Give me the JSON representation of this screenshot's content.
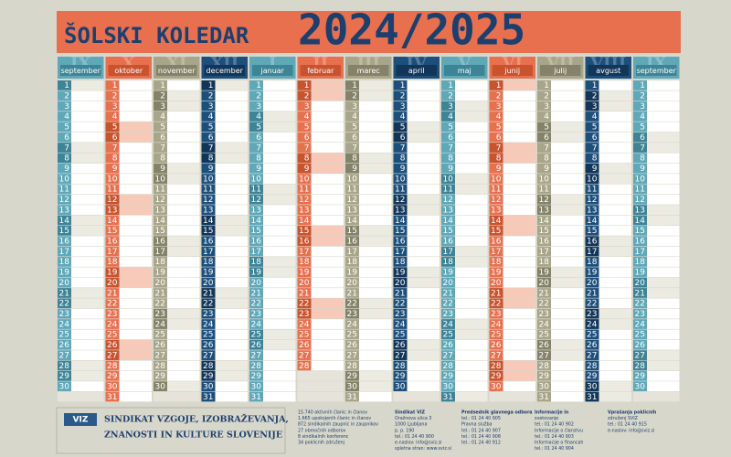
{
  "header": {
    "title": "ŠOLSKI KOLEDAR",
    "years": "2024/2025"
  },
  "months": [
    {
      "name": "september",
      "roman": "IX",
      "days": [
        1,
        2,
        3,
        4,
        5,
        6,
        7,
        8,
        9,
        10,
        11,
        12,
        13,
        14,
        15,
        16,
        17,
        18,
        19,
        20,
        21,
        22,
        23,
        24,
        25,
        26,
        27,
        28,
        29,
        30
      ]
    },
    {
      "name": "oktober",
      "roman": "X",
      "days": [
        1,
        2,
        3,
        4,
        5,
        6,
        7,
        8,
        9,
        10,
        11,
        12,
        13,
        14,
        15,
        16,
        17,
        18,
        19,
        20,
        21,
        22,
        23,
        24,
        25,
        26,
        27,
        28,
        29,
        30,
        31
      ]
    },
    {
      "name": "november",
      "roman": "XI",
      "days": [
        1,
        2,
        3,
        4,
        5,
        6,
        7,
        8,
        9,
        10,
        11,
        12,
        13,
        14,
        15,
        16,
        17,
        18,
        19,
        20,
        21,
        22,
        23,
        24,
        25,
        26,
        27,
        28,
        29,
        30
      ]
    },
    {
      "name": "december",
      "roman": "XII",
      "days": [
        1,
        2,
        3,
        4,
        5,
        6,
        7,
        8,
        9,
        10,
        11,
        12,
        13,
        14,
        15,
        16,
        17,
        18,
        19,
        20,
        21,
        22,
        23,
        24,
        25,
        26,
        27,
        28,
        29,
        30,
        31
      ]
    },
    {
      "name": "januar",
      "roman": "I",
      "days": [
        1,
        2,
        3,
        4,
        5,
        6,
        7,
        8,
        9,
        10,
        11,
        12,
        13,
        14,
        15,
        16,
        17,
        18,
        19,
        20,
        21,
        22,
        23,
        24,
        25,
        26,
        27,
        28,
        29,
        30,
        31
      ]
    },
    {
      "name": "februar",
      "roman": "II",
      "days": [
        1,
        2,
        3,
        4,
        5,
        6,
        7,
        8,
        9,
        10,
        11,
        12,
        13,
        14,
        15,
        16,
        17,
        18,
        19,
        20,
        21,
        22,
        23,
        24,
        25,
        26,
        27,
        28
      ]
    },
    {
      "name": "marec",
      "roman": "III",
      "days": [
        1,
        2,
        3,
        4,
        5,
        6,
        7,
        8,
        9,
        10,
        11,
        12,
        13,
        14,
        15,
        16,
        17,
        18,
        19,
        20,
        21,
        22,
        23,
        24,
        25,
        26,
        27,
        28,
        29,
        30,
        31
      ]
    },
    {
      "name": "april",
      "roman": "IV",
      "days": [
        1,
        2,
        3,
        4,
        5,
        6,
        7,
        8,
        9,
        10,
        11,
        12,
        13,
        14,
        15,
        16,
        17,
        18,
        19,
        20,
        21,
        22,
        23,
        24,
        25,
        26,
        27,
        28,
        29,
        30
      ]
    },
    {
      "name": "maj",
      "roman": "V",
      "days": [
        1,
        2,
        3,
        4,
        5,
        6,
        7,
        8,
        9,
        10,
        11,
        12,
        13,
        14,
        15,
        16,
        17,
        18,
        19,
        20,
        21,
        22,
        23,
        24,
        25,
        26,
        27,
        28,
        29,
        30,
        31
      ]
    },
    {
      "name": "junij",
      "roman": "VI",
      "days": [
        1,
        2,
        3,
        4,
        5,
        6,
        7,
        8,
        9,
        10,
        11,
        12,
        13,
        14,
        15,
        16,
        17,
        18,
        19,
        20,
        21,
        22,
        23,
        24,
        25,
        26,
        27,
        28,
        29,
        30
      ]
    },
    {
      "name": "julij",
      "roman": "VII",
      "days": [
        1,
        2,
        3,
        4,
        5,
        6,
        7,
        8,
        9,
        10,
        11,
        12,
        13,
        14,
        15,
        16,
        17,
        18,
        19,
        20,
        21,
        22,
        23,
        24,
        25,
        26,
        27,
        28,
        29,
        30,
        31
      ]
    },
    {
      "name": "avgust",
      "roman": "VIII",
      "days": [
        1,
        2,
        3,
        4,
        5,
        6,
        7,
        8,
        9,
        10,
        11,
        12,
        13,
        14,
        15,
        16,
        17,
        18,
        19,
        20,
        21,
        22,
        23,
        24,
        25,
        26,
        27,
        28,
        29,
        30,
        31
      ]
    },
    {
      "name": "september",
      "roman": "IX",
      "days": [
        1,
        2,
        3,
        4,
        5,
        6,
        7,
        8,
        9,
        10,
        11,
        12,
        13,
        14,
        15,
        16,
        17,
        18,
        19,
        20,
        21,
        22,
        23,
        24,
        25,
        26,
        27,
        28,
        29,
        30
      ]
    }
  ],
  "footer": {
    "logo": "VIZ",
    "org_lines": [
      "SINDIKAT VZGOJE, IZOBRAŽEVANJA,",
      "ZNANOSTI IN KULTURE SLOVENIJE"
    ],
    "stats": [
      "15.740 aktivnih članic in članov",
      "1.665 upokojenih članic in članov",
      "872 sindikalnih zaupnic in zaupnikov",
      "27 območnih odborov",
      "8 sindikalnih konferenc",
      "34 poklicnih združenj"
    ],
    "contact": [
      "Sindikat VIZ",
      "Oražnova ulica 3",
      "1000 Ljubljana",
      "p. p. 190",
      "tel.: 01 24 40 900",
      "e-naslov: info@sviz.si",
      "spletna stran: www.sviz.si"
    ],
    "col3": [
      "Predsednik glavnega odbora",
      "tel.: 01 24 40 905",
      "Pravna služba",
      "tel.: 01 24 40 907",
      "tel.: 01 24 40 908",
      "tel.: 01 24 40 912"
    ],
    "col4": [
      "Informacije in",
      "svetovanje",
      "tel.: 01 24 40 902",
      "Informacije o članstvu",
      "tel.: 01 24 40 903",
      "Informacije o financah",
      "tel.: 01 24 40 904"
    ],
    "col5": [
      "Vprašanja poklicnih",
      "združenj SVIZ",
      "tel.: 01 24 40 915",
      "e-naslov: info@sviz.si"
    ]
  }
}
